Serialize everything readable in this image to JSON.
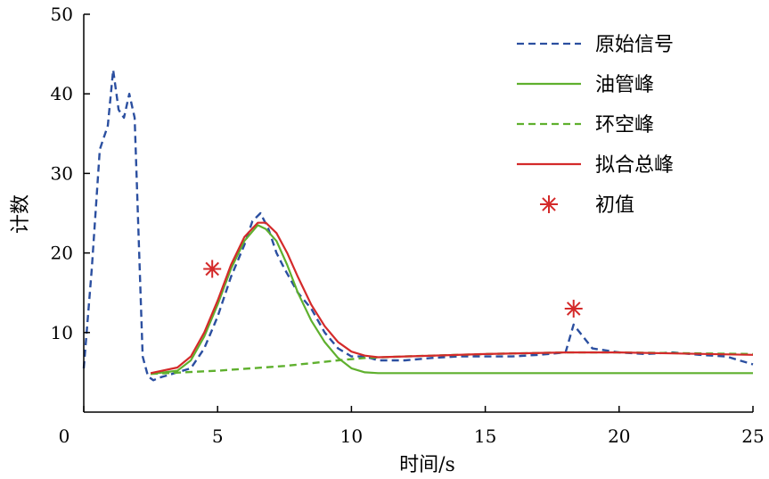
{
  "chart_data": {
    "type": "line",
    "xlabel": "时间/s",
    "ylabel": "计数",
    "xlim": [
      0,
      25
    ],
    "ylim": [
      0,
      50
    ],
    "x_ticks": [
      0,
      5,
      10,
      15,
      20,
      25
    ],
    "y_ticks": [
      10,
      20,
      30,
      40,
      50
    ],
    "x_tick_labels": [
      "0",
      "5",
      "10",
      "15",
      "20",
      "25"
    ],
    "y_tick_labels": [
      "10",
      "20",
      "30",
      "40",
      "50"
    ],
    "grid": false,
    "legend_position": "top-right",
    "series": [
      {
        "name": "原始信号",
        "color": "#2b4fa0",
        "style": "dashed",
        "x": [
          0,
          0.3,
          0.6,
          0.9,
          1.1,
          1.3,
          1.5,
          1.7,
          1.9,
          2.0,
          2.1,
          2.2,
          2.4,
          2.6,
          2.8,
          3.0,
          3.5,
          4.0,
          4.5,
          5.0,
          5.5,
          6.0,
          6.3,
          6.6,
          6.9,
          7.2,
          7.5,
          8.0,
          8.5,
          9.0,
          9.5,
          10.0,
          10.5,
          11.0,
          12.0,
          13.0,
          14.0,
          15.0,
          16.0,
          17.0,
          18.0,
          18.3,
          19.0,
          20.0,
          21.0,
          22.0,
          23.0,
          24.0,
          25.0
        ],
        "y": [
          5.5,
          18,
          33,
          36,
          43,
          38,
          37,
          40,
          37,
          27,
          17,
          7,
          4.5,
          4,
          4.3,
          4.5,
          5,
          5.5,
          8,
          12,
          17,
          21,
          24,
          25,
          23,
          20,
          18,
          15,
          13,
          10,
          8,
          7,
          7,
          6.5,
          6.5,
          6.8,
          7,
          7,
          7,
          7.2,
          7.5,
          11,
          8,
          7.5,
          7.3,
          7.5,
          7.2,
          7,
          6
        ]
      },
      {
        "name": "油管峰",
        "color": "#5fb02e",
        "style": "solid",
        "x": [
          2.5,
          3.5,
          4.0,
          4.5,
          5.0,
          5.5,
          6.0,
          6.5,
          6.8,
          7.2,
          7.6,
          8.0,
          8.5,
          9.0,
          9.5,
          10.0,
          10.5,
          11.0,
          12.0,
          15.0,
          20.0,
          25.0
        ],
        "y": [
          4.8,
          5.2,
          6.5,
          9.5,
          13.5,
          18,
          21.5,
          23.5,
          23,
          21.5,
          18.5,
          15,
          11.5,
          8.8,
          6.8,
          5.5,
          5.0,
          4.9,
          4.9,
          4.9,
          4.9,
          4.9
        ]
      },
      {
        "name": "环空峰",
        "color": "#5fb02e",
        "style": "dashed",
        "x": [
          2.5,
          5.0,
          7.5,
          9.5,
          10.5,
          12.0,
          15.0,
          18.0,
          20.0,
          25.0
        ],
        "y": [
          4.8,
          5.2,
          5.8,
          6.5,
          6.8,
          7.0,
          7.3,
          7.5,
          7.5,
          7.3
        ]
      },
      {
        "name": "拟合总峰",
        "color": "#d42a2a",
        "style": "solid",
        "x": [
          2.5,
          3.5,
          4.0,
          4.5,
          5.0,
          5.5,
          6.0,
          6.5,
          6.8,
          7.2,
          7.6,
          8.0,
          8.5,
          9.0,
          9.5,
          10.0,
          10.5,
          11.0,
          12.0,
          15.0,
          18.0,
          20.0,
          25.0
        ],
        "y": [
          4.9,
          5.6,
          7.0,
          10,
          14,
          18.5,
          22,
          23.8,
          23.8,
          22.5,
          20,
          17,
          13.5,
          10.8,
          8.8,
          7.6,
          7.1,
          6.9,
          7.0,
          7.3,
          7.5,
          7.5,
          7.2
        ]
      }
    ],
    "markers": {
      "name": "初值",
      "symbol": "asterisk",
      "color": "#d42a2a",
      "points": [
        {
          "x": 4.8,
          "y": 18
        },
        {
          "x": 18.3,
          "y": 13
        }
      ]
    }
  }
}
